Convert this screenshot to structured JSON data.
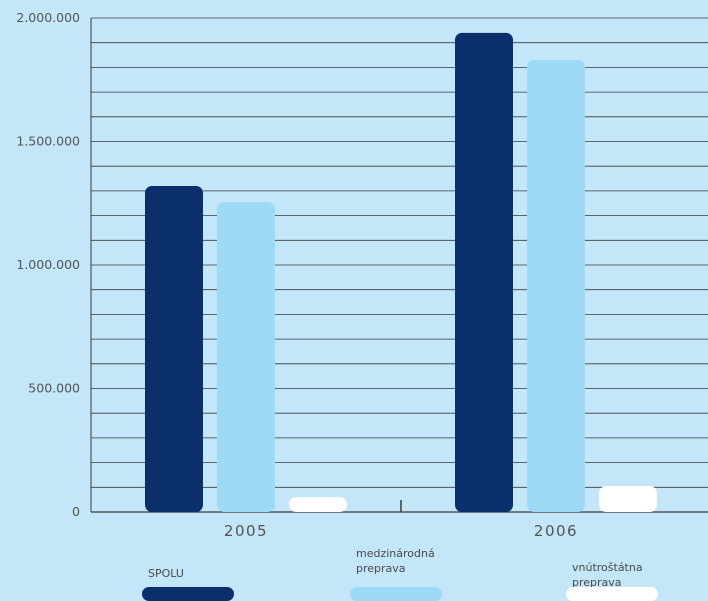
{
  "chart_data": {
    "type": "bar",
    "categories": [
      "2005",
      "2006"
    ],
    "series": [
      {
        "name": "SPOLU",
        "values": [
          1320000,
          1940000
        ],
        "color": "#0a2f6b"
      },
      {
        "name": "medzinárodná preprava",
        "values": [
          1255000,
          1830000
        ],
        "color": "#9ddaf6"
      },
      {
        "name": "vnútroštátna preprava",
        "values": [
          60000,
          105000
        ],
        "color": "#ffffff"
      }
    ],
    "ylim": [
      0,
      2000000
    ],
    "yticks": [
      0,
      500000,
      1000000,
      1500000,
      2000000
    ],
    "ytick_labels": [
      "0",
      "500.000",
      "1.000.000",
      "1.500.000",
      "2.000.000"
    ],
    "grid": true,
    "legend_position": "bottom"
  },
  "legend": {
    "items": [
      {
        "line1": "SPOLU",
        "line2": "",
        "color": "#0a2f6b"
      },
      {
        "line1": "medzinárodná",
        "line2": "preprava",
        "color": "#9ddaf6"
      },
      {
        "line1": "vnútroštátna",
        "line2": "preprava",
        "color": "#ffffff"
      }
    ]
  }
}
